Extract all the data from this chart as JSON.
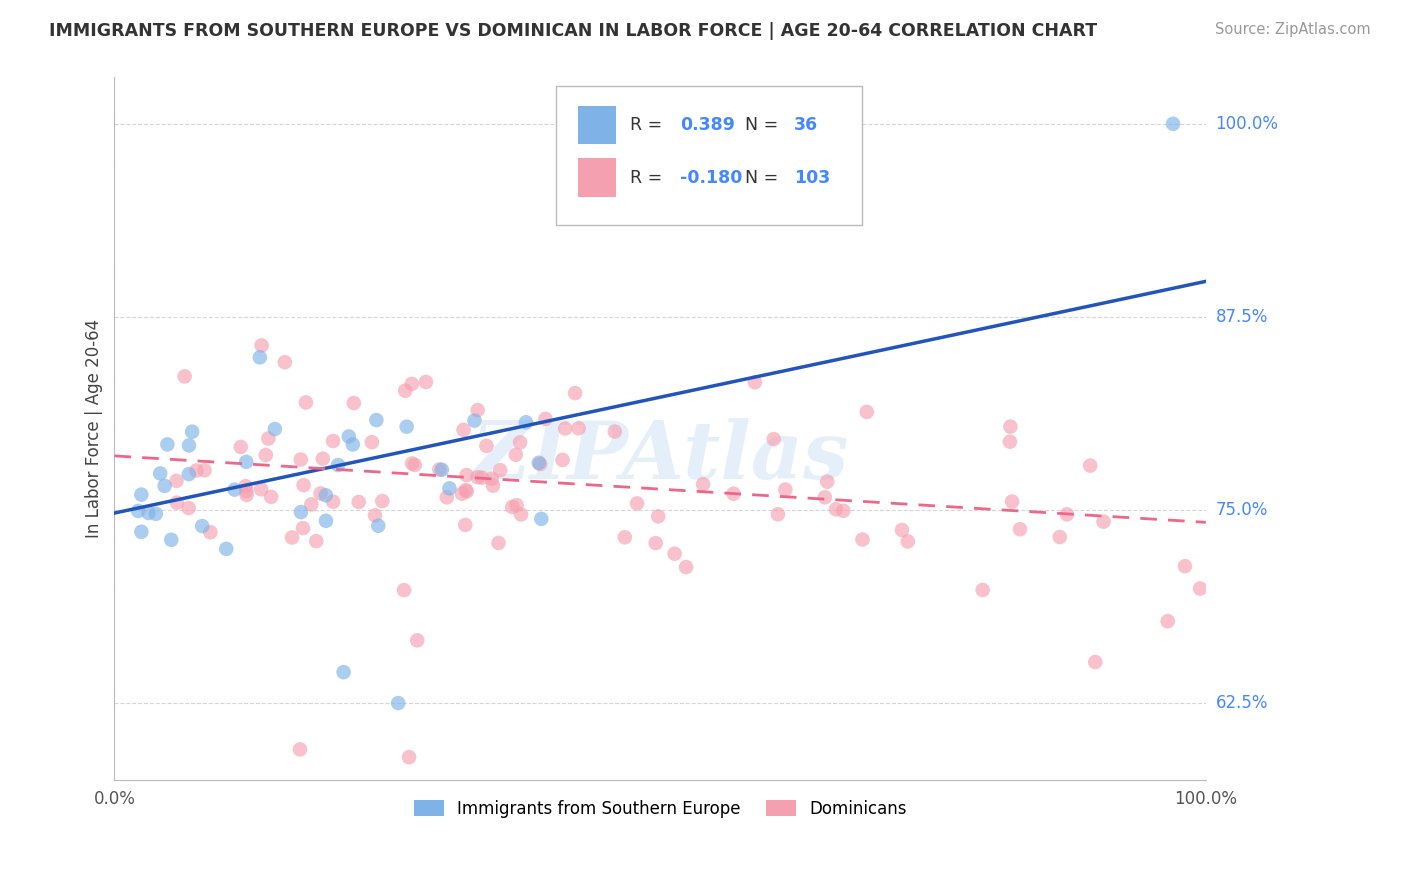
{
  "title": "IMMIGRANTS FROM SOUTHERN EUROPE VS DOMINICAN IN LABOR FORCE | AGE 20-64 CORRELATION CHART",
  "source": "Source: ZipAtlas.com",
  "ylabel": "In Labor Force | Age 20-64",
  "xlim": [
    0.0,
    1.0
  ],
  "ylim": [
    0.575,
    1.03
  ],
  "yticks": [
    0.625,
    0.75,
    0.875,
    1.0
  ],
  "ytick_labels": [
    "62.5%",
    "75.0%",
    "87.5%",
    "100.0%"
  ],
  "xticks": [
    0.0,
    1.0
  ],
  "xtick_labels": [
    "0.0%",
    "100.0%"
  ],
  "r_blue": "0.389",
  "n_blue": "36",
  "r_pink": "-0.180",
  "n_pink": "103",
  "blue_color": "#7fb3e8",
  "pink_color": "#f5a0b0",
  "trend_blue_color": "#2255bb",
  "trend_pink_color": "#ee6688",
  "legend_label_blue": "Immigrants from Southern Europe",
  "legend_label_pink": "Dominicans",
  "watermark": "ZIPAtlas",
  "background_color": "#ffffff",
  "grid_color": "#cccccc",
  "label_color": "#4488ff",
  "title_color": "#333333",
  "source_color": "#999999",
  "trend_blue_x0": 0.0,
  "trend_blue_y0": 0.748,
  "trend_blue_x1": 1.0,
  "trend_blue_y1": 0.898,
  "trend_pink_x0": 0.0,
  "trend_pink_y0": 0.785,
  "trend_pink_x1": 1.0,
  "trend_pink_y1": 0.742
}
